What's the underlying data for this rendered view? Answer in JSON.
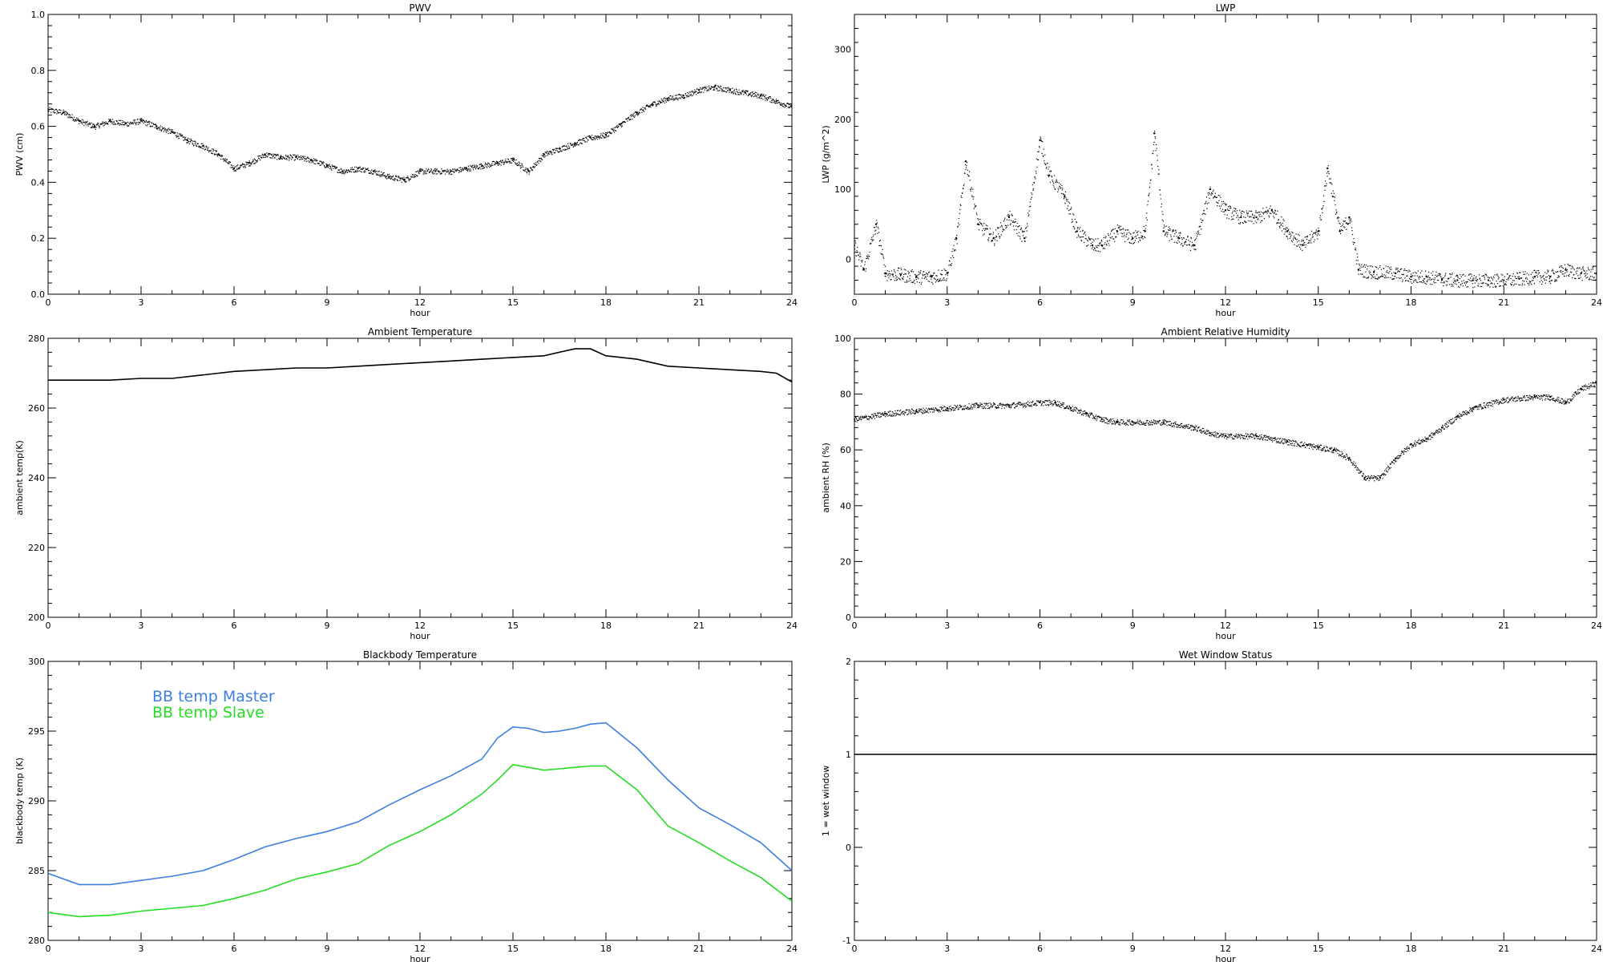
{
  "chart_data": [
    {
      "type": "scatter",
      "title": "PWV",
      "xlabel": "hour",
      "ylabel": "PWV (cm)",
      "xlim": [
        0,
        24
      ],
      "ylim": [
        0.0,
        1.0
      ],
      "xticks": [
        0,
        3,
        6,
        9,
        12,
        15,
        18,
        21,
        24
      ],
      "xtick_labels": [
        "0",
        "3",
        "6",
        "9",
        "12",
        "15",
        "18",
        "21",
        "24"
      ],
      "yticks": [
        0.0,
        0.2,
        0.4,
        0.6,
        0.8,
        1.0
      ],
      "ytick_labels": [
        "0.0",
        "0.2",
        "0.4",
        "0.6",
        "0.8",
        "1.0"
      ],
      "grid": false,
      "series": [
        {
          "color": "#000000",
          "x": [
            0,
            0.5,
            1,
            1.5,
            2,
            2.5,
            3,
            3.5,
            4,
            4.5,
            5,
            5.5,
            6,
            6.5,
            7,
            7.5,
            8,
            8.5,
            9,
            9.5,
            10,
            10.5,
            11,
            11.5,
            12,
            12.5,
            13,
            13.5,
            14,
            14.5,
            15,
            15.5,
            16,
            16.5,
            17,
            17.5,
            18,
            18.5,
            19,
            19.5,
            20,
            20.5,
            21,
            21.5,
            22,
            22.5,
            23,
            23.5,
            24
          ],
          "y": [
            0.66,
            0.65,
            0.62,
            0.6,
            0.62,
            0.61,
            0.62,
            0.6,
            0.58,
            0.55,
            0.53,
            0.5,
            0.45,
            0.47,
            0.5,
            0.49,
            0.49,
            0.48,
            0.46,
            0.44,
            0.45,
            0.44,
            0.42,
            0.41,
            0.44,
            0.44,
            0.44,
            0.45,
            0.46,
            0.47,
            0.48,
            0.44,
            0.5,
            0.52,
            0.54,
            0.56,
            0.57,
            0.61,
            0.65,
            0.68,
            0.7,
            0.71,
            0.73,
            0.74,
            0.73,
            0.72,
            0.71,
            0.69,
            0.67
          ]
        }
      ]
    },
    {
      "type": "scatter",
      "title": "LWP",
      "xlabel": "hour",
      "ylabel": "LWP (g/m^2)",
      "xlim": [
        0,
        24
      ],
      "ylim": [
        -50,
        350
      ],
      "xticks": [
        0,
        3,
        6,
        9,
        12,
        15,
        18,
        21,
        24
      ],
      "xtick_labels": [
        "0",
        "3",
        "6",
        "9",
        "12",
        "15",
        "18",
        "21",
        "24"
      ],
      "yticks": [
        0,
        100,
        200,
        300
      ],
      "ytick_labels": [
        "0",
        "100",
        "200",
        "300"
      ],
      "grid": false,
      "series": [
        {
          "color": "#000000",
          "x": [
            0,
            0.3,
            0.7,
            1,
            1.5,
            2,
            2.5,
            3,
            3.3,
            3.6,
            4,
            4.5,
            5,
            5.5,
            6,
            6.3,
            6.8,
            7.2,
            7.7,
            8,
            8.5,
            9,
            9.4,
            9.7,
            10,
            10.5,
            11,
            11.5,
            12,
            12.5,
            13,
            13.5,
            14,
            14.5,
            15,
            15.3,
            15.7,
            16,
            16.3,
            16.8,
            17.5,
            18,
            18.5,
            19,
            19.5,
            20,
            20.5,
            21,
            21.5,
            22,
            22.5,
            23,
            23.5,
            24
          ],
          "y": [
            20,
            -15,
            50,
            -20,
            -22,
            -25,
            -25,
            -20,
            30,
            140,
            50,
            30,
            60,
            30,
            170,
            120,
            90,
            40,
            20,
            20,
            40,
            30,
            40,
            180,
            40,
            30,
            20,
            100,
            70,
            60,
            60,
            70,
            40,
            20,
            40,
            130,
            40,
            60,
            -15,
            -18,
            -20,
            -25,
            -25,
            -28,
            -30,
            -30,
            -30,
            -30,
            -28,
            -25,
            -25,
            -15,
            -20,
            -20
          ]
        }
      ]
    },
    {
      "type": "line",
      "title": "Ambient Temperature",
      "xlabel": "hour",
      "ylabel": "ambient temp(K)",
      "xlim": [
        0,
        24
      ],
      "ylim": [
        200,
        280
      ],
      "xticks": [
        0,
        3,
        6,
        9,
        12,
        15,
        18,
        21,
        24
      ],
      "xtick_labels": [
        "0",
        "3",
        "6",
        "9",
        "12",
        "15",
        "18",
        "21",
        "24"
      ],
      "yticks": [
        200,
        220,
        240,
        260,
        280
      ],
      "ytick_labels": [
        "200",
        "220",
        "240",
        "260",
        "280"
      ],
      "grid": false,
      "series": [
        {
          "color": "#000000",
          "x": [
            0,
            1,
            2,
            3,
            4,
            5,
            6,
            7,
            8,
            9,
            10,
            11,
            12,
            13,
            14,
            15,
            16,
            16.5,
            17,
            17.5,
            18,
            19,
            20,
            21,
            22,
            23,
            23.5,
            24
          ],
          "y": [
            268,
            268,
            268,
            268.5,
            268.5,
            269.5,
            270.5,
            271,
            271.5,
            271.5,
            272,
            272.5,
            273,
            273.5,
            274,
            274.5,
            275,
            276,
            277,
            277,
            275,
            274,
            272,
            271.5,
            271,
            270.5,
            270,
            267.5
          ]
        }
      ]
    },
    {
      "type": "scatter",
      "title": "Ambient Relative Humidity",
      "xlabel": "hour",
      "ylabel": "ambient RH (%)",
      "xlim": [
        0,
        24
      ],
      "ylim": [
        0,
        100
      ],
      "xticks": [
        0,
        3,
        6,
        9,
        12,
        15,
        18,
        21,
        24
      ],
      "xtick_labels": [
        "0",
        "3",
        "6",
        "9",
        "12",
        "15",
        "18",
        "21",
        "24"
      ],
      "yticks": [
        0,
        20,
        40,
        60,
        80,
        100
      ],
      "ytick_labels": [
        "0",
        "20",
        "40",
        "60",
        "80",
        "100"
      ],
      "grid": false,
      "series": [
        {
          "color": "#000000",
          "x": [
            0,
            1,
            2,
            3,
            4,
            5,
            6,
            6.5,
            7,
            7.5,
            8,
            8.5,
            9,
            10,
            11,
            11.5,
            12,
            13,
            14,
            15,
            15.5,
            16,
            16.5,
            17,
            17.5,
            18,
            18.5,
            19,
            19.5,
            20,
            21,
            22,
            22.5,
            23,
            23.5,
            24
          ],
          "y": [
            71,
            73,
            74,
            75,
            76,
            76,
            77,
            77,
            75,
            73,
            71,
            70,
            70,
            70,
            68,
            66,
            65,
            65,
            63,
            61,
            60,
            57,
            50,
            50,
            57,
            62,
            64,
            68,
            72,
            75,
            78,
            79,
            79,
            77,
            82,
            84
          ]
        }
      ]
    },
    {
      "type": "line",
      "title": "Blackbody Temperature",
      "xlabel": "hour",
      "ylabel": "blackbody temp (K)",
      "xlim": [
        0,
        24
      ],
      "ylim": [
        280,
        300
      ],
      "xticks": [
        0,
        3,
        6,
        9,
        12,
        15,
        18,
        21,
        24
      ],
      "xtick_labels": [
        "0",
        "3",
        "6",
        "9",
        "12",
        "15",
        "18",
        "21",
        "24"
      ],
      "yticks": [
        280,
        285,
        290,
        295,
        300
      ],
      "ytick_labels": [
        "280",
        "285",
        "290",
        "295",
        "300"
      ],
      "grid": false,
      "legend": "top-left",
      "series": [
        {
          "name": "BB temp Master",
          "color": "#3d7fe0",
          "x": [
            0,
            1,
            2,
            3,
            4,
            5,
            6,
            7,
            8,
            9,
            10,
            11,
            12,
            13,
            14,
            14.5,
            15,
            15.5,
            16,
            16.5,
            17,
            17.5,
            18,
            19,
            20,
            21,
            22,
            23,
            24
          ],
          "y": [
            284.8,
            284.0,
            284.0,
            284.3,
            284.6,
            285.0,
            285.8,
            286.7,
            287.3,
            287.8,
            288.5,
            289.7,
            290.8,
            291.8,
            293.0,
            294.5,
            295.3,
            295.2,
            294.9,
            295.0,
            295.2,
            295.5,
            295.6,
            293.8,
            291.5,
            289.5,
            288.3,
            287.0,
            285.0
          ]
        },
        {
          "name": "BB temp Slave",
          "color": "#22dd22",
          "x": [
            0,
            1,
            2,
            3,
            4,
            5,
            6,
            7,
            8,
            9,
            10,
            11,
            12,
            13,
            14,
            14.5,
            15,
            15.5,
            16,
            16.5,
            17,
            17.5,
            18,
            19,
            20,
            21,
            22,
            23,
            24
          ],
          "y": [
            282.0,
            281.7,
            281.8,
            282.1,
            282.3,
            282.5,
            283.0,
            283.6,
            284.4,
            284.9,
            285.5,
            286.8,
            287.8,
            289.0,
            290.5,
            291.5,
            292.6,
            292.4,
            292.2,
            292.3,
            292.4,
            292.5,
            292.5,
            290.8,
            288.2,
            287.0,
            285.7,
            284.5,
            282.8
          ]
        }
      ]
    },
    {
      "type": "line",
      "title": "Wet Window Status",
      "xlabel": "hour",
      "ylabel": "1 = wet window",
      "xlim": [
        0,
        24
      ],
      "ylim": [
        -1,
        2
      ],
      "xticks": [
        0,
        3,
        6,
        9,
        12,
        15,
        18,
        21,
        24
      ],
      "xtick_labels": [
        "0",
        "3",
        "6",
        "9",
        "12",
        "15",
        "18",
        "21",
        "24"
      ],
      "yticks": [
        -1,
        0,
        1,
        2
      ],
      "ytick_labels": [
        "-1",
        "0",
        "1",
        "2"
      ],
      "grid": false,
      "series": [
        {
          "color": "#000000",
          "x": [
            0,
            24
          ],
          "y": [
            1,
            1
          ]
        }
      ]
    }
  ]
}
